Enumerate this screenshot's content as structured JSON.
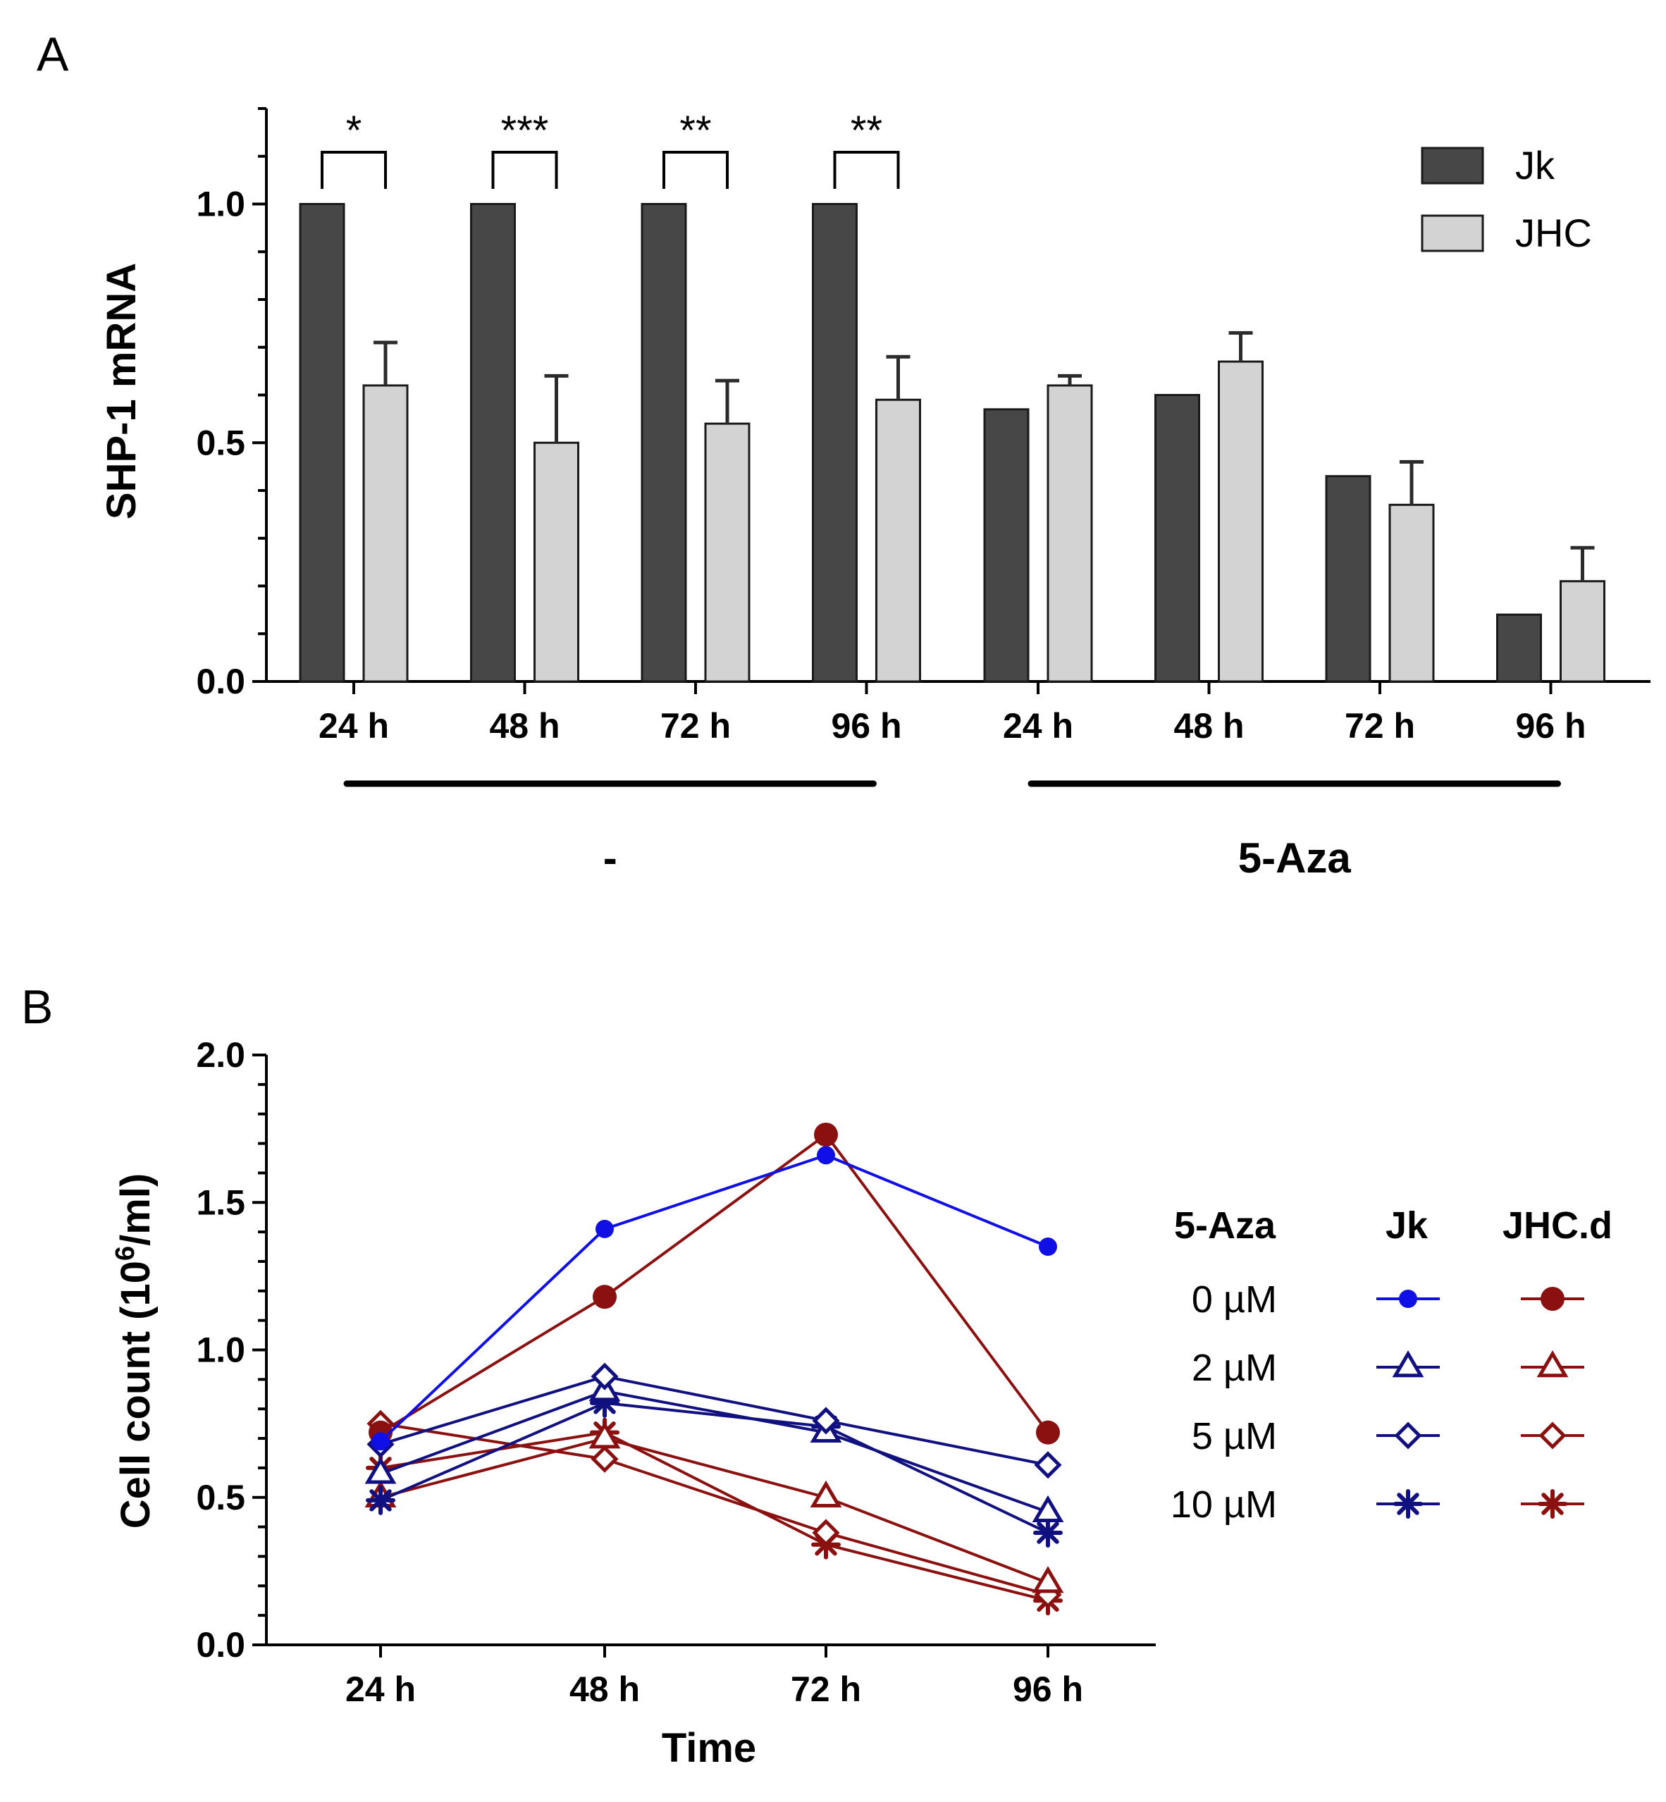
{
  "panels": {
    "a_label": "A",
    "b_label": "B"
  },
  "colors": {
    "jk_bar": "#474747",
    "jhc_bar": "#d3d3d3",
    "bar_stroke": "#1a1a1a",
    "jk_line": "#1010e6",
    "jk_dark": "#101080",
    "jhc_line": "#8b1010"
  },
  "chart_data": [
    {
      "type": "bar",
      "panel": "A",
      "ylabel": "SHP-1 mRNA",
      "ylim": [
        0,
        1.2
      ],
      "yticks": [
        0.0,
        0.5,
        1.0
      ],
      "ytick_labels": [
        "0.0",
        "0.5",
        "1.0"
      ],
      "categories": [
        "24 h",
        "48 h",
        "72 h",
        "96 h",
        "24 h",
        "48 h",
        "72 h",
        "96 h"
      ],
      "groups": [
        {
          "label": "-",
          "categories": [
            0,
            1,
            2,
            3
          ]
        },
        {
          "label": "5-Aza",
          "categories": [
            4,
            5,
            6,
            7
          ]
        }
      ],
      "series": [
        {
          "name": "Jk",
          "values": [
            1.0,
            1.0,
            1.0,
            1.0,
            0.57,
            0.6,
            0.43,
            0.14
          ],
          "errors": [
            0,
            0,
            0,
            0,
            0,
            0,
            0,
            0
          ]
        },
        {
          "name": "JHC",
          "values": [
            0.62,
            0.5,
            0.54,
            0.59,
            0.62,
            0.67,
            0.37,
            0.21
          ],
          "errors": [
            0.09,
            0.14,
            0.09,
            0.09,
            0.02,
            0.06,
            0.09,
            0.07
          ]
        }
      ],
      "significance": [
        {
          "category": 0,
          "label": "*"
        },
        {
          "category": 1,
          "label": "***"
        },
        {
          "category": 2,
          "label": "**"
        },
        {
          "category": 3,
          "label": "**"
        }
      ],
      "legend": [
        "Jk",
        "JHC"
      ],
      "legend_position": "top-right"
    },
    {
      "type": "line",
      "panel": "B",
      "xlabel": "Time",
      "ylabel_prefix": "Cell count (10",
      "ylabel_sup": "6",
      "ylabel_suffix": "/ml)",
      "ylim": [
        0,
        2.0
      ],
      "yticks": [
        0.0,
        0.5,
        1.0,
        1.5,
        2.0
      ],
      "ytick_labels": [
        "0.0",
        "0.5",
        "1.0",
        "1.5",
        "2.0"
      ],
      "categories": [
        "24 h",
        "48 h",
        "72 h",
        "96 h"
      ],
      "legend_header": {
        "dose": "5-Aza",
        "jk": "Jk",
        "jhc": "JHC.d"
      },
      "legend_rows": [
        "0 µM",
        "2 µM",
        "5 µM",
        "10 µM"
      ],
      "legend_position": "right",
      "series": [
        {
          "cell": "Jk",
          "dose": "0 µM",
          "marker": "dot",
          "values": [
            0.69,
            1.41,
            1.66,
            1.35
          ]
        },
        {
          "cell": "Jk",
          "dose": "2 µM",
          "marker": "triangle",
          "values": [
            0.58,
            0.86,
            0.72,
            0.45
          ]
        },
        {
          "cell": "Jk",
          "dose": "5 µM",
          "marker": "diamond",
          "values": [
            0.68,
            0.91,
            0.76,
            0.61
          ]
        },
        {
          "cell": "Jk",
          "dose": "10 µM",
          "marker": "star",
          "values": [
            0.49,
            0.82,
            0.74,
            0.38
          ]
        },
        {
          "cell": "JHC.d",
          "dose": "0 µM",
          "marker": "circle",
          "values": [
            0.72,
            1.18,
            1.73,
            0.72
          ]
        },
        {
          "cell": "JHC.d",
          "dose": "2 µM",
          "marker": "triangle",
          "values": [
            0.5,
            0.7,
            0.5,
            0.21
          ]
        },
        {
          "cell": "JHC.d",
          "dose": "5 µM",
          "marker": "diamond",
          "values": [
            0.75,
            0.63,
            0.38,
            0.17
          ]
        },
        {
          "cell": "JHC.d",
          "dose": "10 µM",
          "marker": "star",
          "values": [
            0.6,
            0.72,
            0.34,
            0.15
          ]
        }
      ]
    }
  ]
}
